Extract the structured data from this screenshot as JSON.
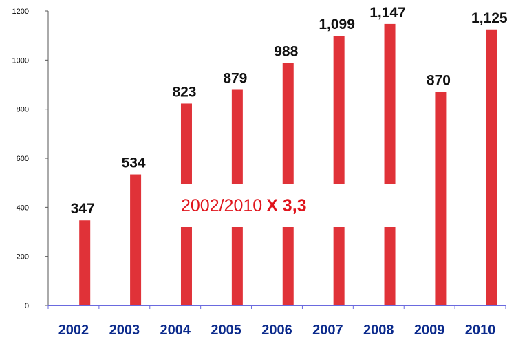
{
  "chart_data": {
    "type": "bar",
    "categories": [
      "2002",
      "2003",
      "2004",
      "2005",
      "2006",
      "2007",
      "2008",
      "2009",
      "2010"
    ],
    "values": [
      347,
      534,
      823,
      879,
      988,
      1099,
      1147,
      870,
      1125
    ],
    "data_labels": [
      "347",
      "534",
      "823",
      "879",
      "988",
      "1,099",
      "1,147",
      "870",
      "1,125"
    ],
    "y_ticks": [
      0,
      200,
      400,
      600,
      800,
      1000,
      1200
    ],
    "ylim": [
      0,
      1200
    ],
    "grid": false,
    "legend": "none",
    "colors": {
      "bar": "#e03238",
      "axis": "#6a6adf",
      "category_label": "#0b2a8c",
      "annotation_text": "#e0141c"
    },
    "annotation": {
      "prefix": "2002/2010",
      "emphasis": "X 3,3"
    }
  }
}
